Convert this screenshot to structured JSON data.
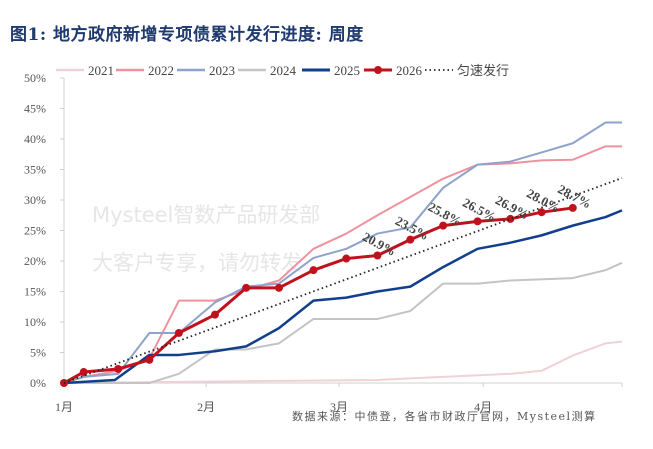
{
  "title": "图1: 地方政府新增专项债累计发行进度: 周度",
  "source": "数据来源：中债登，各省市财政厅官网，Mysteel测算",
  "watermark": [
    "Mysteel智数产品研发部",
    "大客户专享，请勿转发"
  ],
  "chart_data": {
    "type": "line",
    "title": "图1: 地方政府新增专项债累计发行进度: 周度",
    "xlabel": "",
    "ylabel": "",
    "x_unit": "weeks since Jan 1",
    "xlim": [
      0,
      17
    ],
    "ylim": [
      0,
      50
    ],
    "y_ticks": [
      "0%",
      "5%",
      "10%",
      "15%",
      "20%",
      "25%",
      "30%",
      "35%",
      "40%",
      "45%",
      "50%"
    ],
    "x_ticks": [
      {
        "label": "1月",
        "x": 0
      },
      {
        "label": "2月",
        "x": 4.33
      },
      {
        "label": "3月",
        "x": 8.38
      },
      {
        "label": "4月",
        "x": 12.77
      }
    ],
    "legend_position": "top",
    "grid": false,
    "series": [
      {
        "name": "2021",
        "color": "#f0d2d6",
        "width": 2,
        "x": [
          0,
          9.55,
          11.55,
          13.6,
          14.55,
          15.5,
          16.5,
          17
        ],
        "y": [
          0,
          0.5,
          1,
          1.5,
          2,
          4.5,
          6.5,
          6.8
        ]
      },
      {
        "name": "2022",
        "color": "#f0919e",
        "width": 2,
        "x": [
          0,
          0.6,
          1.65,
          2.6,
          3.5,
          4.6,
          5.55,
          6.55,
          7.6,
          8.6,
          9.55,
          10.55,
          11.55,
          12.6,
          13.6,
          14.55,
          15.5,
          16.5,
          17
        ],
        "y": [
          0,
          1,
          2,
          4,
          13.5,
          13.5,
          15.3,
          16.8,
          22,
          24.5,
          27.5,
          30.5,
          33.5,
          35.8,
          36,
          36.5,
          36.6,
          38.8,
          38.8
        ]
      },
      {
        "name": "2023",
        "color": "#8ea3cc",
        "width": 2,
        "x": [
          0,
          0.6,
          1.65,
          2.6,
          3.5,
          4.6,
          5.55,
          6.55,
          7.6,
          8.6,
          9.55,
          10.55,
          11.55,
          12.6,
          13.6,
          14.55,
          15.5,
          16.5,
          17
        ],
        "y": [
          0,
          1,
          1.5,
          8.2,
          8.2,
          13.2,
          15.8,
          16.3,
          20.5,
          22,
          24.5,
          25.5,
          32,
          35.8,
          36.3,
          37.8,
          39.3,
          42.7,
          42.7
        ]
      },
      {
        "name": "2024",
        "color": "#c4c4c4",
        "width": 2,
        "x": [
          0,
          2.6,
          3.5,
          4.6,
          5.55,
          6.55,
          7.6,
          9.55,
          10.55,
          11.55,
          12.6,
          13.6,
          15.5,
          16.5,
          17
        ],
        "y": [
          0,
          0,
          1.5,
          5.5,
          5.5,
          6.5,
          10.5,
          10.5,
          11.8,
          16.3,
          16.3,
          16.8,
          17.2,
          18.5,
          19.7
        ]
      },
      {
        "name": "2025",
        "color": "#123f8c",
        "width": 2.5,
        "x": [
          0,
          1.55,
          2.6,
          3.5,
          4.6,
          5.55,
          6.55,
          7.6,
          8.6,
          9.55,
          10.55,
          11.55,
          12.6,
          13.6,
          14.55,
          15.5,
          16.5,
          17
        ],
        "y": [
          0,
          0.5,
          4.6,
          4.6,
          5.2,
          6,
          9,
          13.5,
          14,
          15,
          15.8,
          19,
          22,
          23,
          24.2,
          25.8,
          27.2,
          28.3
        ]
      },
      {
        "name": "2026",
        "color": "#c0121c",
        "width": 3,
        "markers": true,
        "x": [
          0,
          0.6,
          1.65,
          2.6,
          3.5,
          4.6,
          5.55,
          6.55,
          7.6,
          8.6,
          9.55,
          10.55,
          11.55,
          12.6,
          13.6,
          14.55,
          15.5
        ],
        "y": [
          0,
          1.8,
          2.3,
          3.8,
          8.2,
          11.2,
          15.6,
          15.6,
          18.5,
          20.4,
          20.9,
          23.5,
          25.8,
          26.5,
          26.9,
          28.0,
          28.7
        ]
      },
      {
        "name": "匀速发行",
        "color": "#222222",
        "width": 1.8,
        "dotted": true,
        "x": [
          0,
          17
        ],
        "y": [
          0,
          33.6
        ]
      }
    ],
    "data_labels": [
      {
        "x": 9.55,
        "y": 20.9,
        "text": "20.9%"
      },
      {
        "x": 10.55,
        "y": 23.5,
        "text": "23.5%"
      },
      {
        "x": 11.55,
        "y": 25.8,
        "text": "25.8%"
      },
      {
        "x": 12.6,
        "y": 26.5,
        "text": "26.5%"
      },
      {
        "x": 13.6,
        "y": 26.9,
        "text": "26.9%"
      },
      {
        "x": 14.55,
        "y": 28.0,
        "text": "28.0%"
      },
      {
        "x": 15.5,
        "y": 28.7,
        "text": "28.7%"
      }
    ]
  }
}
